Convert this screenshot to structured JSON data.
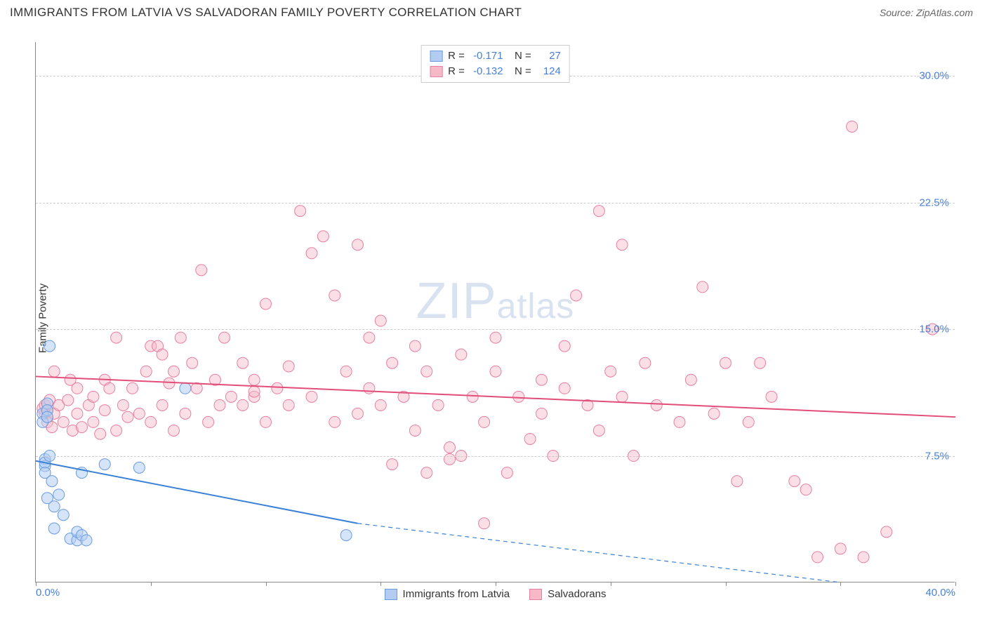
{
  "title": "IMMIGRANTS FROM LATVIA VS SALVADORAN FAMILY POVERTY CORRELATION CHART",
  "source": "Source: ZipAtlas.com",
  "ylabel": "Family Poverty",
  "watermark_big": "ZIP",
  "watermark_small": "atlas",
  "chart": {
    "xlim": [
      0,
      40
    ],
    "ylim": [
      0,
      32
    ],
    "xtick_positions": [
      0,
      5,
      10,
      15,
      20,
      25,
      30,
      35,
      40
    ],
    "xtick_labels": {
      "0": "0.0%",
      "40": "40.0%"
    },
    "ytick_positions": [
      7.5,
      15.0,
      22.5,
      30.0
    ],
    "ytick_labels": [
      "7.5%",
      "15.0%",
      "22.5%",
      "30.0%"
    ],
    "grid_color": "#cccccc",
    "axis_color": "#888888",
    "tick_label_color": "#4a7fd8",
    "background_color": "#ffffff"
  },
  "series": [
    {
      "name": "Immigrants from Latvia",
      "short": "latvia",
      "marker_fill": "#b3cdf2",
      "marker_stroke": "#6a9be0",
      "marker_fill_opacity": 0.55,
      "marker_radius": 8,
      "line_color": "#3b82d6",
      "line_width": 2,
      "trend_start": {
        "x": 0,
        "y": 7.2
      },
      "trend_solid_end": {
        "x": 14,
        "y": 3.5
      },
      "trend_dash_end": {
        "x": 35,
        "y": 0.0
      },
      "R": "-0.171",
      "N": "27",
      "points": [
        [
          0.3,
          10.0
        ],
        [
          0.3,
          9.5
        ],
        [
          0.4,
          7.3
        ],
        [
          0.4,
          6.9
        ],
        [
          0.4,
          7.1
        ],
        [
          0.4,
          6.5
        ],
        [
          0.5,
          10.6
        ],
        [
          0.5,
          10.2
        ],
        [
          0.5,
          9.8
        ],
        [
          0.5,
          5.0
        ],
        [
          0.6,
          14.0
        ],
        [
          0.6,
          7.5
        ],
        [
          0.7,
          6.0
        ],
        [
          0.8,
          4.5
        ],
        [
          0.8,
          3.2
        ],
        [
          1.0,
          5.2
        ],
        [
          1.2,
          4.0
        ],
        [
          1.5,
          2.6
        ],
        [
          1.8,
          2.5
        ],
        [
          1.8,
          3.0
        ],
        [
          2.0,
          6.5
        ],
        [
          2.0,
          2.8
        ],
        [
          2.2,
          2.5
        ],
        [
          3.0,
          7.0
        ],
        [
          4.5,
          6.8
        ],
        [
          6.5,
          11.5
        ],
        [
          13.5,
          2.8
        ]
      ]
    },
    {
      "name": "Salvadorans",
      "short": "salvadorans",
      "marker_fill": "#f7b8c8",
      "marker_stroke": "#e87fa0",
      "marker_fill_opacity": 0.45,
      "marker_radius": 8,
      "line_color": "#e24d7a",
      "line_width": 2,
      "trend_start": {
        "x": 0,
        "y": 12.2
      },
      "trend_solid_end": {
        "x": 40,
        "y": 9.8
      },
      "trend_dash_end": null,
      "R": "-0.132",
      "N": "124",
      "points": [
        [
          0.3,
          10.3
        ],
        [
          0.4,
          10.0
        ],
        [
          0.4,
          10.5
        ],
        [
          0.5,
          9.8
        ],
        [
          0.5,
          10.2
        ],
        [
          0.5,
          9.5
        ],
        [
          0.6,
          10.8
        ],
        [
          0.7,
          9.2
        ],
        [
          0.8,
          10.0
        ],
        [
          0.8,
          12.5
        ],
        [
          1.0,
          10.5
        ],
        [
          1.2,
          9.5
        ],
        [
          1.4,
          10.8
        ],
        [
          1.5,
          12.0
        ],
        [
          1.6,
          9.0
        ],
        [
          1.8,
          10.0
        ],
        [
          1.8,
          11.5
        ],
        [
          2.0,
          9.2
        ],
        [
          2.3,
          10.5
        ],
        [
          2.5,
          11.0
        ],
        [
          2.5,
          9.5
        ],
        [
          2.8,
          8.8
        ],
        [
          3.0,
          10.2
        ],
        [
          3.0,
          12.0
        ],
        [
          3.2,
          11.5
        ],
        [
          3.5,
          9.0
        ],
        [
          3.5,
          14.5
        ],
        [
          3.8,
          10.5
        ],
        [
          4.0,
          9.8
        ],
        [
          4.2,
          11.5
        ],
        [
          4.5,
          10.0
        ],
        [
          4.8,
          12.5
        ],
        [
          5.0,
          14.0
        ],
        [
          5.0,
          9.5
        ],
        [
          5.3,
          14.0
        ],
        [
          5.5,
          10.5
        ],
        [
          5.5,
          13.5
        ],
        [
          5.8,
          11.8
        ],
        [
          6.0,
          9.0
        ],
        [
          6.0,
          12.5
        ],
        [
          6.3,
          14.5
        ],
        [
          6.5,
          10.0
        ],
        [
          6.8,
          13.0
        ],
        [
          7.0,
          11.5
        ],
        [
          7.2,
          18.5
        ],
        [
          7.5,
          9.5
        ],
        [
          7.8,
          12.0
        ],
        [
          8.0,
          10.5
        ],
        [
          8.2,
          14.5
        ],
        [
          8.5,
          11.0
        ],
        [
          9.0,
          13.0
        ],
        [
          9.0,
          10.5
        ],
        [
          9.5,
          12.0
        ],
        [
          9.5,
          11.0
        ],
        [
          9.5,
          11.3
        ],
        [
          10.0,
          9.5
        ],
        [
          10.0,
          16.5
        ],
        [
          10.5,
          11.5
        ],
        [
          11.0,
          12.8
        ],
        [
          11.0,
          10.5
        ],
        [
          11.5,
          22.0
        ],
        [
          12.0,
          11.0
        ],
        [
          12.0,
          19.5
        ],
        [
          12.5,
          20.5
        ],
        [
          13.0,
          17.0
        ],
        [
          13.0,
          9.5
        ],
        [
          13.5,
          12.5
        ],
        [
          14.0,
          10.0
        ],
        [
          14.0,
          20.0
        ],
        [
          14.5,
          11.5
        ],
        [
          14.5,
          14.5
        ],
        [
          15.0,
          15.5
        ],
        [
          15.0,
          10.5
        ],
        [
          15.5,
          13.0
        ],
        [
          15.5,
          7.0
        ],
        [
          16.0,
          11.0
        ],
        [
          16.5,
          9.0
        ],
        [
          16.5,
          14.0
        ],
        [
          17.0,
          6.5
        ],
        [
          17.0,
          12.5
        ],
        [
          17.5,
          10.5
        ],
        [
          18.0,
          8.0
        ],
        [
          18.0,
          7.3
        ],
        [
          18.5,
          7.5
        ],
        [
          18.5,
          13.5
        ],
        [
          19.0,
          11.0
        ],
        [
          19.5,
          3.5
        ],
        [
          19.5,
          9.5
        ],
        [
          20.0,
          12.5
        ],
        [
          20.0,
          14.5
        ],
        [
          20.5,
          6.5
        ],
        [
          21.0,
          11.0
        ],
        [
          21.5,
          8.5
        ],
        [
          22.0,
          10.0
        ],
        [
          22.0,
          12.0
        ],
        [
          22.5,
          7.5
        ],
        [
          23.0,
          11.5
        ],
        [
          23.0,
          14.0
        ],
        [
          23.5,
          17.0
        ],
        [
          24.0,
          10.5
        ],
        [
          24.5,
          9.0
        ],
        [
          24.5,
          22.0
        ],
        [
          25.0,
          12.5
        ],
        [
          25.5,
          11.0
        ],
        [
          25.5,
          20.0
        ],
        [
          26.0,
          7.5
        ],
        [
          26.5,
          13.0
        ],
        [
          27.0,
          10.5
        ],
        [
          28.0,
          9.5
        ],
        [
          28.5,
          12.0
        ],
        [
          29.0,
          17.5
        ],
        [
          29.5,
          10.0
        ],
        [
          30.0,
          13.0
        ],
        [
          30.5,
          6.0
        ],
        [
          31.0,
          9.5
        ],
        [
          31.5,
          13.0
        ],
        [
          32.0,
          11.0
        ],
        [
          33.0,
          6.0
        ],
        [
          33.5,
          5.5
        ],
        [
          34.0,
          1.5
        ],
        [
          35.0,
          2.0
        ],
        [
          35.5,
          27.0
        ],
        [
          36.0,
          1.5
        ],
        [
          37.0,
          3.0
        ],
        [
          39.0,
          15.0
        ]
      ]
    }
  ]
}
